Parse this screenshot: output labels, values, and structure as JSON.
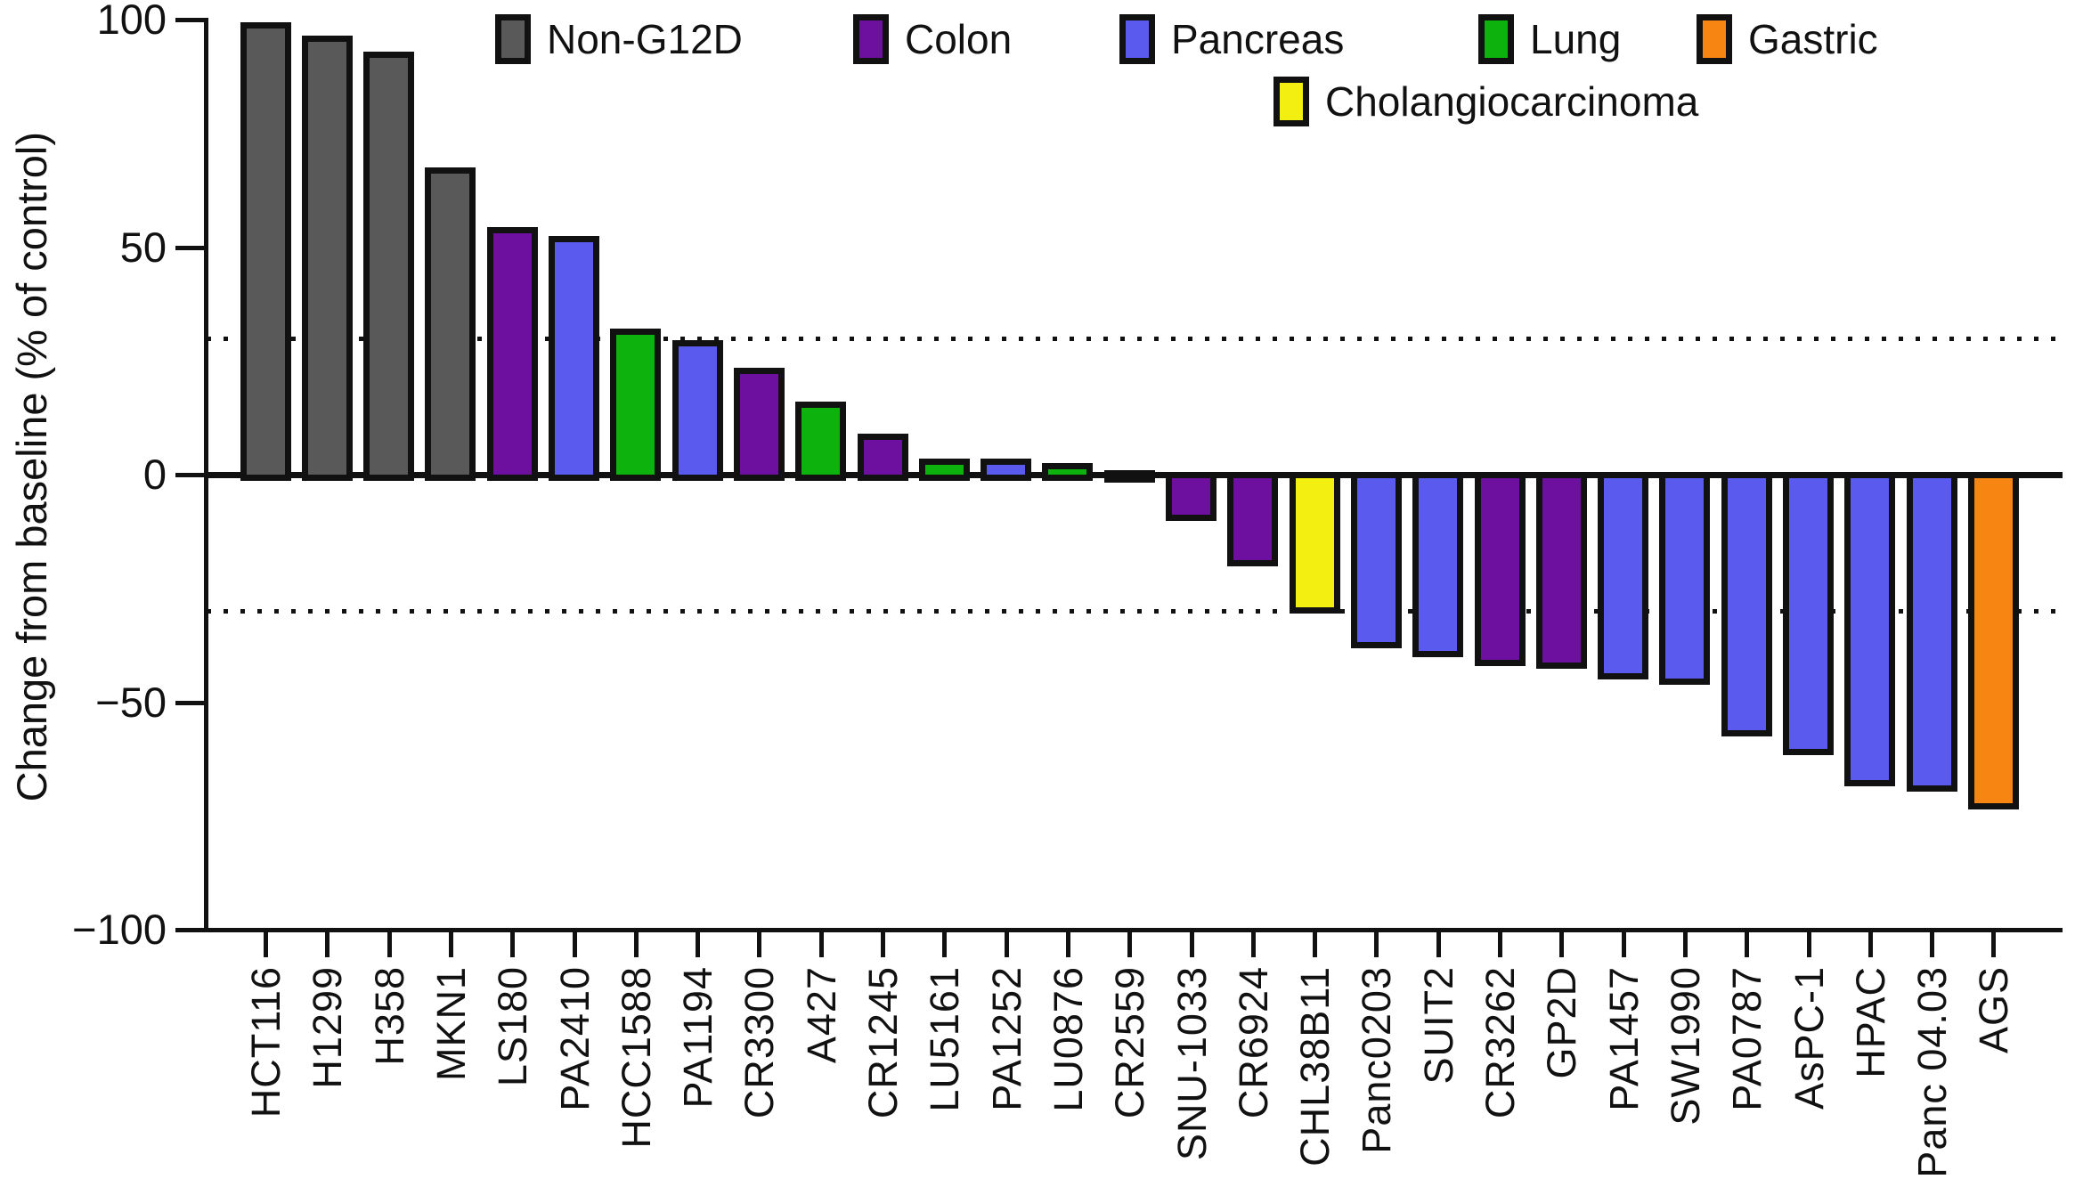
{
  "chart_data": {
    "type": "bar",
    "title": "",
    "ylabel": "Change from baseline (% of control)",
    "xlabel": "",
    "ylim": [
      -100,
      100
    ],
    "yticks": [
      100,
      50,
      0,
      -50,
      -100
    ],
    "ytick_labels": [
      "100",
      "50",
      "0",
      "−50",
      "−100"
    ],
    "reference_lines": [
      30,
      -30
    ],
    "grid": false,
    "legend_position": "top",
    "bar_border_color": "#111111",
    "group_colors": {
      "Non-G12D": "#595959",
      "Colon": "#6d0f9f",
      "Pancreas": "#5a5bee",
      "Lung": "#0db20d",
      "Gastric": "#f68511",
      "Cholangiocarcinoma": "#f3ef10"
    },
    "legend": [
      {
        "label": "Non-G12D",
        "key": "Non-G12D",
        "row": 0
      },
      {
        "label": "Colon",
        "key": "Colon",
        "row": 0
      },
      {
        "label": "Pancreas",
        "key": "Pancreas",
        "row": 0
      },
      {
        "label": "Lung",
        "key": "Lung",
        "row": 0
      },
      {
        "label": "Gastric",
        "key": "Gastric",
        "row": 0
      },
      {
        "label": "Cholangiocarcinoma",
        "key": "Cholangiocarcinoma",
        "row": 1
      }
    ],
    "categories": [
      "HCT116",
      "H1299",
      "H358",
      "MKN1",
      "LS180",
      "PA2410",
      "HCC1588",
      "PA1194",
      "CR3300",
      "A427",
      "CR1245",
      "LU5161",
      "PA1252",
      "LU0876",
      "CR2559",
      "SNU-1033",
      "CR6924",
      "CHL38B11",
      "Panc0203",
      "SUIT2",
      "CR3262",
      "GP2D",
      "PA1457",
      "SW1990",
      "PA0787",
      "AsPC-1",
      "HPAC",
      "Panc 04.03",
      "AGS"
    ],
    "values": [
      99.5,
      96.5,
      93,
      67.5,
      54.5,
      52.5,
      32,
      29.5,
      23.5,
      16,
      9,
      3.5,
      3.5,
      2.5,
      1,
      -9.5,
      -19.5,
      -30,
      -37.5,
      -39.5,
      -41.5,
      -42,
      -44.5,
      -45.5,
      -57,
      -61,
      -68,
      -69,
      -73
    ],
    "groups": [
      "Non-G12D",
      "Non-G12D",
      "Non-G12D",
      "Non-G12D",
      "Colon",
      "Pancreas",
      "Lung",
      "Pancreas",
      "Colon",
      "Lung",
      "Colon",
      "Lung",
      "Pancreas",
      "Lung",
      "Colon",
      "Colon",
      "Colon",
      "Cholangiocarcinoma",
      "Pancreas",
      "Pancreas",
      "Colon",
      "Colon",
      "Pancreas",
      "Pancreas",
      "Pancreas",
      "Pancreas",
      "Pancreas",
      "Pancreas",
      "Gastric"
    ]
  }
}
